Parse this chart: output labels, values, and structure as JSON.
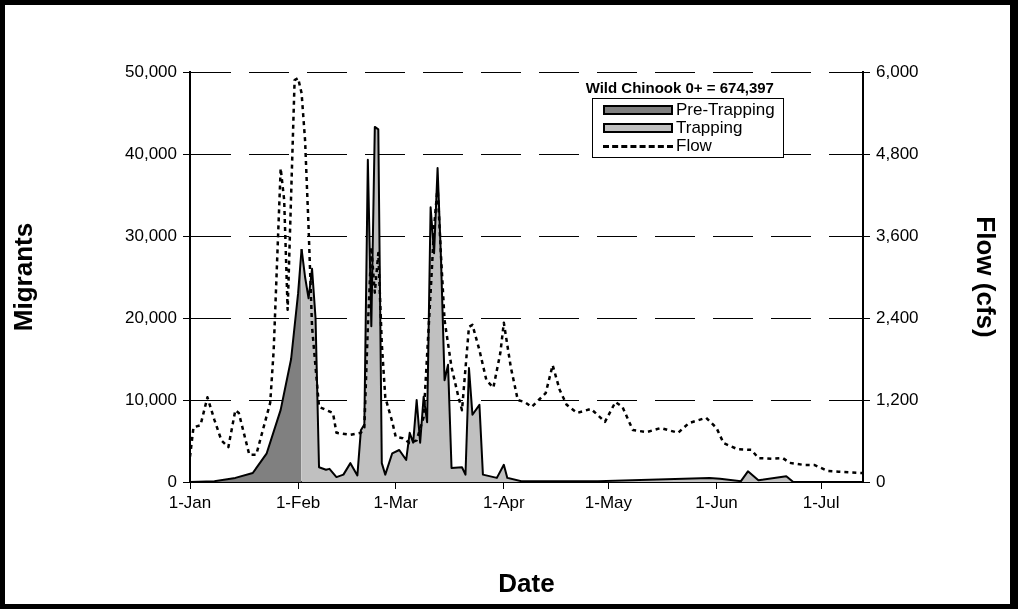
{
  "chart_data": {
    "type": "area",
    "xlabel": "Date",
    "ylabel": "Migrants",
    "y2label": "Flow (cfs)",
    "legend_title": "Wild Chinook 0+ = 674,397",
    "legend": "top right",
    "grid": "y",
    "marker": "none",
    "xlim": [
      "--01-01",
      "--07-13"
    ],
    "xticks": [
      {
        "value": "--01-01",
        "label": "1-Jan"
      },
      {
        "value": "--02-01",
        "label": "1-Feb"
      },
      {
        "value": "--03-01",
        "label": "1-Mar"
      },
      {
        "value": "--04-01",
        "label": "1-Apr"
      },
      {
        "value": "--05-01",
        "label": "1-May"
      },
      {
        "value": "--06-01",
        "label": "1-Jun"
      },
      {
        "value": "--07-01",
        "label": "1-Jul"
      }
    ],
    "ylim": [
      0,
      50000
    ],
    "yticks": [
      0,
      {
        "value": 10000,
        "label": "10,000"
      },
      {
        "value": 20000,
        "label": "20,000"
      },
      {
        "value": 30000,
        "label": "30,000"
      },
      {
        "value": 40000,
        "label": "40,000"
      },
      {
        "value": 50000,
        "label": "50,000"
      }
    ],
    "y2lim": [
      0,
      6000
    ],
    "y2ticks": [
      0,
      {
        "value": 1200,
        "label": "1,200"
      },
      {
        "value": 2400,
        "label": "2,400"
      },
      {
        "value": 3600,
        "label": "3,600"
      },
      {
        "value": 4800,
        "label": "4,800"
      },
      {
        "value": 6000,
        "label": "6,000"
      }
    ],
    "series": [
      {
        "name": "Pre-Trapping",
        "color": "#808080",
        "x": [
          "--01-01",
          "--01-08",
          "--01-14",
          "--01-19",
          "--01-23",
          "--01-27",
          "--01-30",
          "--02-01",
          "--02-02"
        ],
        "values": [
          0,
          100,
          500,
          1100,
          3500,
          8800,
          15000,
          23000,
          28400
        ]
      },
      {
        "name": "Trapping",
        "color": "#c0c0c0",
        "x": [
          "--02-02",
          "--02-03",
          "--02-04",
          "--02-05",
          "--02-06",
          "--02-07",
          "--02-09",
          "--02-10",
          "--02-12",
          "--02-14",
          "--02-16",
          "--02-18",
          "--02-19",
          "--02-20",
          "--02-21",
          "--02-22",
          "--02-23",
          "--02-24",
          "--02-25",
          "--02-26",
          "--02-28",
          "--03-02",
          "--03-04",
          "--03-05",
          "--03-06",
          "--03-07",
          "--03-08",
          "--03-09",
          "--03-10",
          "--03-11",
          "--03-12",
          "--03-13",
          "--03-14",
          "--03-15",
          "--03-16",
          "--03-17",
          "--03-20",
          "--03-21",
          "--03-22",
          "--03-23",
          "--03-25",
          "--03-26",
          "--03-30",
          "--04-01",
          "--04-02",
          "--04-06",
          "--04-28",
          "--05-30",
          "--06-02",
          "--06-08",
          "--06-10",
          "--06-13",
          "--06-21",
          "--06-23",
          "--07-13"
        ],
        "values": [
          28400,
          25000,
          22400,
          26000,
          20000,
          1800,
          1500,
          1600,
          600,
          900,
          2300,
          800,
          6300,
          7000,
          39300,
          19000,
          43300,
          43000,
          2300,
          900,
          3500,
          3900,
          2700,
          6000,
          4800,
          10000,
          4800,
          10400,
          7300,
          33500,
          27900,
          38300,
          27000,
          12400,
          14300,
          1700,
          1800,
          900,
          13900,
          8200,
          9400,
          900,
          500,
          2100,
          500,
          100,
          100,
          500,
          400,
          100,
          1300,
          200,
          700,
          0,
          0
        ]
      },
      {
        "name": "Flow",
        "type": "line",
        "axis": "y2",
        "line_style": "dotted",
        "color": "#000000",
        "x": [
          "--01-01",
          "--01-02",
          "--01-04",
          "--01-06",
          "--01-08",
          "--01-10",
          "--01-12",
          "--01-14",
          "--01-15",
          "--01-18",
          "--01-20",
          "--01-24",
          "--01-25",
          "--01-27",
          "--01-28",
          "--01-29",
          "--01-31",
          "--02-01",
          "--02-02",
          "--02-03",
          "--02-04",
          "--02-05",
          "--02-07",
          "--02-11",
          "--02-12",
          "--02-16",
          "--02-19",
          "--02-20",
          "--02-21",
          "--02-22",
          "--02-23",
          "--02-24",
          "--02-25",
          "--02-26",
          "--02-28",
          "--03-01",
          "--03-03",
          "--03-05",
          "--03-07",
          "--03-09",
          "--03-11",
          "--03-12",
          "--03-13",
          "--03-14",
          "--03-15",
          "--03-17",
          "--03-19",
          "--03-20",
          "--03-22",
          "--03-23",
          "--03-25",
          "--03-27",
          "--03-29",
          "--03-31",
          "--04-01",
          "--04-03",
          "--04-05",
          "--04-07",
          "--04-09",
          "--04-11",
          "--04-13",
          "--04-15",
          "--04-17",
          "--04-19",
          "--04-22",
          "--04-26",
          "--04-30",
          "--05-03",
          "--05-05",
          "--05-08",
          "--05-12",
          "--05-16",
          "--05-21",
          "--05-24",
          "--05-29",
          "--06-01",
          "--06-03",
          "--06-07",
          "--06-11",
          "--06-13",
          "--06-17",
          "--06-20",
          "--06-22",
          "--06-26",
          "--06-29",
          "--07-03",
          "--07-06",
          "--07-13"
        ],
        "values": [
          370,
          800,
          830,
          1240,
          910,
          610,
          510,
          1050,
          1010,
          400,
          400,
          1160,
          1930,
          4590,
          4130,
          2520,
          5880,
          5910,
          5690,
          5000,
          3730,
          2270,
          1100,
          1010,
          720,
          690,
          720,
          800,
          2270,
          3440,
          2770,
          3350,
          2030,
          1240,
          880,
          660,
          640,
          570,
          610,
          950,
          2770,
          3730,
          4320,
          3290,
          2370,
          1680,
          1240,
          1050,
          2270,
          2300,
          1930,
          1490,
          1380,
          1890,
          2330,
          1680,
          1200,
          1170,
          1100,
          1200,
          1300,
          1710,
          1350,
          1130,
          1010,
          1070,
          880,
          1170,
          1100,
          760,
          730,
          790,
          720,
          860,
          940,
          790,
          570,
          480,
          470,
          350,
          340,
          350,
          280,
          250,
          250,
          160,
          150,
          130
        ]
      }
    ]
  }
}
